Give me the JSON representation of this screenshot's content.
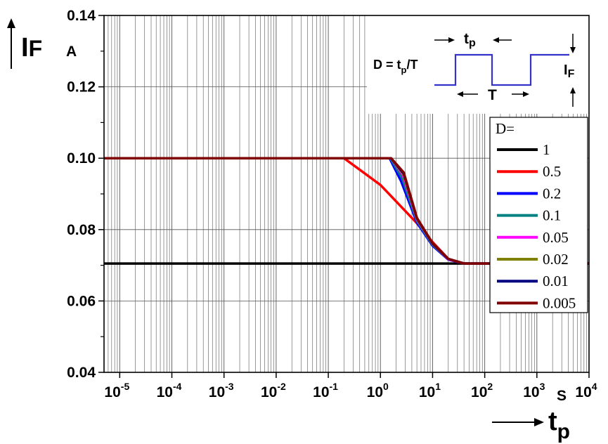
{
  "chart_data": {
    "type": "line",
    "x_scale": "log",
    "xlim": [
      5e-06,
      10000
    ],
    "ylim": [
      0.04,
      0.14
    ],
    "grid": true,
    "legend_position": "right",
    "x_ticks": [
      {
        "value": 1e-05,
        "base": "10",
        "exp": "-5"
      },
      {
        "value": 0.0001,
        "base": "10",
        "exp": "-4"
      },
      {
        "value": 0.001,
        "base": "10",
        "exp": "-3"
      },
      {
        "value": 0.01,
        "base": "10",
        "exp": "-2"
      },
      {
        "value": 0.1,
        "base": "10",
        "exp": "-1"
      },
      {
        "value": 1,
        "base": "10",
        "exp": "0"
      },
      {
        "value": 10,
        "base": "10",
        "exp": "1"
      },
      {
        "value": 100,
        "base": "10",
        "exp": "2"
      },
      {
        "value": 1000,
        "base": "10",
        "exp": "3"
      },
      {
        "value": 10000,
        "base": "10",
        "exp": "4"
      }
    ],
    "y_ticks": [
      {
        "value": 0.04,
        "label": "0.04"
      },
      {
        "value": 0.06,
        "label": "0.06"
      },
      {
        "value": 0.08,
        "label": "0.08"
      },
      {
        "value": 0.1,
        "label": "0.10"
      },
      {
        "value": 0.12,
        "label": "0.12"
      },
      {
        "value": 0.14,
        "label": "0.14"
      }
    ],
    "ylabel": {
      "main": "I",
      "sub": "F",
      "unit": "A"
    },
    "xlabel": {
      "main": "t",
      "sub": "p",
      "unit": "S"
    },
    "legend_title": "D=",
    "series": [
      {
        "name": "1",
        "color": "#000000",
        "points": [
          [
            5e-06,
            0.0705
          ],
          [
            10000,
            0.0705
          ]
        ]
      },
      {
        "name": "0.5",
        "color": "#ff0000",
        "points": [
          [
            5e-06,
            0.1
          ],
          [
            0.2,
            0.1
          ],
          [
            1,
            0.0925
          ],
          [
            5,
            0.0818
          ],
          [
            10,
            0.0765
          ],
          [
            20,
            0.0718
          ],
          [
            40,
            0.0705
          ],
          [
            10000,
            0.0705
          ]
        ]
      },
      {
        "name": "0.2",
        "color": "#0000ff",
        "points": [
          [
            5e-06,
            0.1
          ],
          [
            1.5,
            0.1
          ],
          [
            2.5,
            0.0935
          ],
          [
            5,
            0.082
          ],
          [
            10,
            0.0755
          ],
          [
            20,
            0.0716
          ],
          [
            40,
            0.0705
          ],
          [
            10000,
            0.0705
          ]
        ]
      },
      {
        "name": "0.1",
        "color": "#008080",
        "points": [
          [
            5e-06,
            0.1
          ],
          [
            1.55,
            0.1
          ],
          [
            2.6,
            0.0945
          ],
          [
            5,
            0.0825
          ],
          [
            10,
            0.0758
          ],
          [
            20,
            0.0717
          ],
          [
            40,
            0.0705
          ],
          [
            10000,
            0.0705
          ]
        ]
      },
      {
        "name": "0.05",
        "color": "#ff00ff",
        "points": [
          [
            5e-06,
            0.1
          ],
          [
            1.6,
            0.1
          ],
          [
            2.7,
            0.0952
          ],
          [
            5,
            0.0828
          ],
          [
            10,
            0.076
          ],
          [
            20,
            0.0717
          ],
          [
            40,
            0.0705
          ],
          [
            10000,
            0.0705
          ]
        ]
      },
      {
        "name": "0.02",
        "color": "#808000",
        "points": [
          [
            5e-06,
            0.1
          ],
          [
            1.6,
            0.1
          ],
          [
            2.75,
            0.0955
          ],
          [
            5,
            0.083
          ],
          [
            10,
            0.076
          ],
          [
            20,
            0.0718
          ],
          [
            40,
            0.0705
          ],
          [
            10000,
            0.0705
          ]
        ]
      },
      {
        "name": "0.01",
        "color": "#000080",
        "points": [
          [
            5e-06,
            0.1
          ],
          [
            1.6,
            0.1
          ],
          [
            2.8,
            0.0957
          ],
          [
            5,
            0.0832
          ],
          [
            10,
            0.0761
          ],
          [
            20,
            0.0718
          ],
          [
            40,
            0.0705
          ],
          [
            10000,
            0.0705
          ]
        ]
      },
      {
        "name": "0.005",
        "color": "#800000",
        "points": [
          [
            5e-06,
            0.1
          ],
          [
            1.6,
            0.1
          ],
          [
            2.8,
            0.096
          ],
          [
            5,
            0.0833
          ],
          [
            10,
            0.0762
          ],
          [
            20,
            0.0718
          ],
          [
            40,
            0.0705
          ],
          [
            10000,
            0.0705
          ]
        ]
      }
    ]
  },
  "inset": {
    "formula_main": "D = t",
    "formula_sub": "p",
    "formula_end": "/T",
    "tp_main": "t",
    "tp_sub": "p",
    "period_label": "T",
    "if_main": "I",
    "if_sub": "F",
    "wave_color": "#3333cc"
  }
}
